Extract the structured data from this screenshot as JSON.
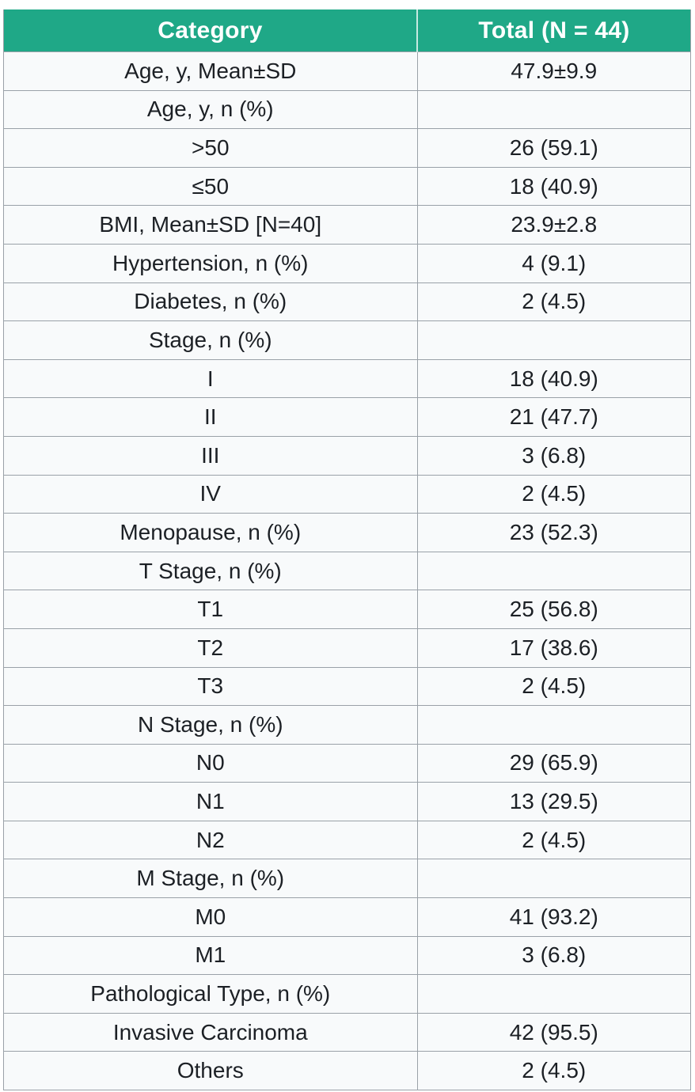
{
  "colors": {
    "header_bg": "#1FA887",
    "header_divider": "#d8ece6",
    "row_bg": "#F8FAFB",
    "grid_border": "#9AA1A8",
    "body_text": "#1C2025",
    "header_text": "#FFFFFF"
  },
  "table": {
    "header": {
      "category": "Category",
      "total": "Total (N = 44)"
    },
    "rows": [
      {
        "category": "Age, y, Mean±SD",
        "total": "47.9±9.9"
      },
      {
        "category": "Age, y, n (%)",
        "total": ""
      },
      {
        "category": ">50",
        "total": "26 (59.1)"
      },
      {
        "category": "≤50",
        "total": "18 (40.9)"
      },
      {
        "category": "BMI, Mean±SD [N=40]",
        "total": "23.9±2.8"
      },
      {
        "category": "Hypertension, n (%)",
        "total": "4 (9.1)"
      },
      {
        "category": "Diabetes, n (%)",
        "total": "2 (4.5)"
      },
      {
        "category": "Stage, n (%)",
        "total": ""
      },
      {
        "category": "I",
        "total": "18 (40.9)"
      },
      {
        "category": "II",
        "total": "21 (47.7)"
      },
      {
        "category": "III",
        "total": "3 (6.8)"
      },
      {
        "category": "IV",
        "total": "2 (4.5)"
      },
      {
        "category": "Menopause, n (%)",
        "total": "23 (52.3)"
      },
      {
        "category": "T Stage, n (%)",
        "total": ""
      },
      {
        "category": "T1",
        "total": "25 (56.8)"
      },
      {
        "category": "T2",
        "total": "17 (38.6)"
      },
      {
        "category": "T3",
        "total": "2 (4.5)"
      },
      {
        "category": "N Stage, n (%)",
        "total": ""
      },
      {
        "category": "N0",
        "total": "29 (65.9)"
      },
      {
        "category": "N1",
        "total": "13 (29.5)"
      },
      {
        "category": "N2",
        "total": "2 (4.5)"
      },
      {
        "category": "M Stage, n (%)",
        "total": ""
      },
      {
        "category": "M0",
        "total": "41 (93.2)"
      },
      {
        "category": "M1",
        "total": "3 (6.8)"
      },
      {
        "category": "Pathological Type, n (%)",
        "total": ""
      },
      {
        "category": "Invasive Carcinoma",
        "total": "42 (95.5)"
      },
      {
        "category": "Others",
        "total": "2 (4.5)"
      }
    ]
  },
  "chart_data": {
    "type": "table",
    "title": "Total (N = 44)",
    "columns": [
      "Category",
      "Total (N = 44)"
    ],
    "rows": [
      [
        "Age, y, Mean±SD",
        "47.9±9.9"
      ],
      [
        "Age, y, n (%)",
        ""
      ],
      [
        ">50",
        "26 (59.1)"
      ],
      [
        "≤50",
        "18 (40.9)"
      ],
      [
        "BMI, Mean±SD [N=40]",
        "23.9±2.8"
      ],
      [
        "Hypertension, n (%)",
        "4 (9.1)"
      ],
      [
        "Diabetes, n (%)",
        "2 (4.5)"
      ],
      [
        "Stage, n (%)",
        ""
      ],
      [
        "I",
        "18 (40.9)"
      ],
      [
        "II",
        "21 (47.7)"
      ],
      [
        "III",
        "3 (6.8)"
      ],
      [
        "IV",
        "2 (4.5)"
      ],
      [
        "Menopause, n (%)",
        "23 (52.3)"
      ],
      [
        "T Stage, n (%)",
        ""
      ],
      [
        "T1",
        "25 (56.8)"
      ],
      [
        "T2",
        "17 (38.6)"
      ],
      [
        "T3",
        "2 (4.5)"
      ],
      [
        "N Stage, n (%)",
        ""
      ],
      [
        "N0",
        "29 (65.9)"
      ],
      [
        "N1",
        "13 (29.5)"
      ],
      [
        "N2",
        "2 (4.5)"
      ],
      [
        "M Stage, n (%)",
        ""
      ],
      [
        "M0",
        "41 (93.2)"
      ],
      [
        "M1",
        "3 (6.8)"
      ],
      [
        "Pathological Type, n (%)",
        ""
      ],
      [
        "Invasive Carcinoma",
        "42 (95.5)"
      ],
      [
        "Others",
        "2 (4.5)"
      ]
    ]
  }
}
